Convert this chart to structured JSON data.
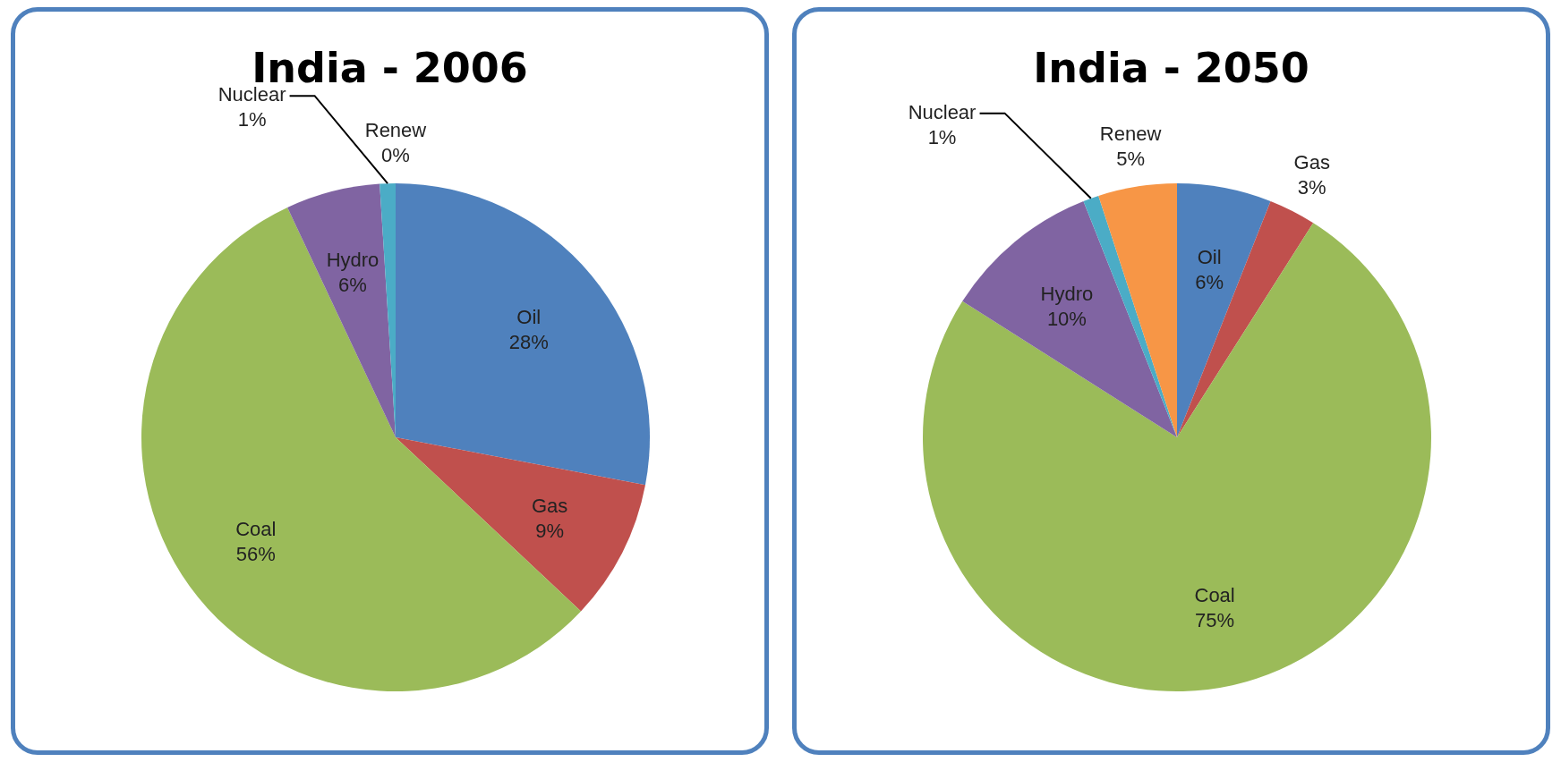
{
  "chart_data": [
    {
      "type": "pie",
      "title": "India - 2006",
      "categories": [
        "Oil",
        "Gas",
        "Coal",
        "Hydro",
        "Nuclear",
        "Renew"
      ],
      "values": [
        28,
        9,
        56,
        6,
        1,
        0
      ],
      "value_labels": [
        "28%",
        "9%",
        "56%",
        "6%",
        "1%",
        "0%"
      ],
      "colors": [
        "#4f81bd",
        "#c0504d",
        "#9bbb59",
        "#8064a2",
        "#4bacc6",
        "#f79646"
      ]
    },
    {
      "type": "pie",
      "title": "India - 2050",
      "categories": [
        "Oil",
        "Gas",
        "Coal",
        "Hydro",
        "Nuclear",
        "Renew"
      ],
      "values": [
        6,
        3,
        75,
        10,
        1,
        5
      ],
      "value_labels": [
        "6%",
        "3%",
        "75%",
        "10%",
        "1%",
        "5%"
      ],
      "colors": [
        "#4f81bd",
        "#c0504d",
        "#9bbb59",
        "#8064a2",
        "#4bacc6",
        "#f79646"
      ]
    }
  ]
}
